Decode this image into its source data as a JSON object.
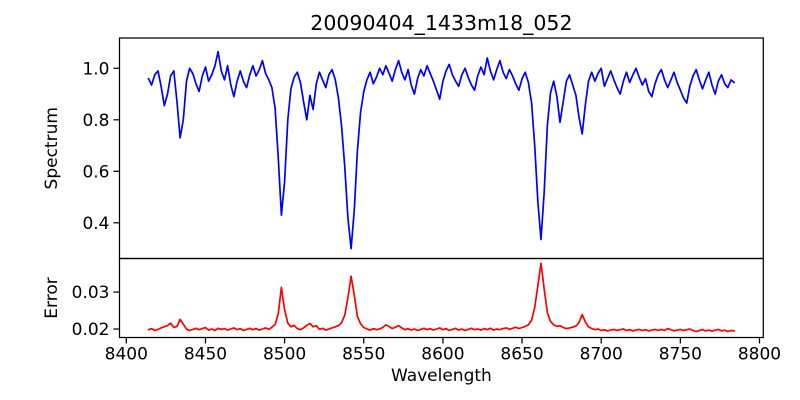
{
  "title": "20090404_1433m18_052",
  "colors": {
    "spectrum_line": "#0000ff",
    "error_line": "#ff0000",
    "spine": "#000000",
    "background": "#ffffff",
    "text": "#000000"
  },
  "axes": {
    "x": {
      "label": "Wavelength",
      "lim": [
        8395.7,
        8802.4
      ],
      "ticks": [
        8400,
        8450,
        8500,
        8550,
        8600,
        8650,
        8700,
        8750,
        8800
      ],
      "tick_labels": [
        "8400",
        "8450",
        "8500",
        "8550",
        "8600",
        "8650",
        "8700",
        "8750",
        "8800"
      ]
    }
  },
  "chart_data": [
    {
      "type": "line",
      "title": "20090404_1433m18_052",
      "xlabel": "Wavelength",
      "ylabel": "Spectrum",
      "color": "#0000ff",
      "grid": false,
      "legend": null,
      "xlim": [
        8395.7,
        8802.4
      ],
      "ylim": [
        0.2614,
        1.1177
      ],
      "yticks": [
        0.4,
        0.6,
        0.8,
        1.0
      ],
      "ytick_labels": [
        "0.4",
        "0.6",
        "0.8",
        "1.0"
      ],
      "absorption_line_centers": [
        8424,
        8434,
        8468,
        8498,
        8514,
        8542,
        8582,
        8598,
        8648,
        8662,
        8675,
        8688,
        8712,
        8732,
        8754,
        8772
      ],
      "x0": 8414,
      "dx": 2,
      "y": [
        0.96,
        0.935,
        0.975,
        0.99,
        0.93,
        0.855,
        0.9,
        0.97,
        0.99,
        0.87,
        0.73,
        0.8,
        0.95,
        1.0,
        0.98,
        0.94,
        0.91,
        0.97,
        1.005,
        0.95,
        0.975,
        1.01,
        1.065,
        0.99,
        0.955,
        1.01,
        0.935,
        0.89,
        0.95,
        0.99,
        0.95,
        0.925,
        0.975,
        1.01,
        0.97,
        0.995,
        1.03,
        0.98,
        0.955,
        0.925,
        0.845,
        0.65,
        0.43,
        0.56,
        0.8,
        0.92,
        0.965,
        0.985,
        0.945,
        0.87,
        0.8,
        0.895,
        0.84,
        0.94,
        0.985,
        0.955,
        0.925,
        0.975,
        0.995,
        0.955,
        0.885,
        0.775,
        0.615,
        0.42,
        0.3,
        0.45,
        0.68,
        0.83,
        0.91,
        0.955,
        0.985,
        0.94,
        0.965,
        1.0,
        0.975,
        1.01,
        0.98,
        0.95,
        0.995,
        1.03,
        0.985,
        0.955,
        0.995,
        0.935,
        0.9,
        0.96,
        0.995,
        0.97,
        1.01,
        0.98,
        0.95,
        0.915,
        0.88,
        0.95,
        0.99,
        1.015,
        0.975,
        0.95,
        0.93,
        0.975,
        1.0,
        0.965,
        0.935,
        0.915,
        0.97,
        1.005,
        0.975,
        1.04,
        0.99,
        0.955,
        0.995,
        1.03,
        0.985,
        0.96,
        0.995,
        0.97,
        0.94,
        0.915,
        0.96,
        0.985,
        0.945,
        0.865,
        0.7,
        0.48,
        0.335,
        0.52,
        0.78,
        0.905,
        0.95,
        0.89,
        0.79,
        0.87,
        0.95,
        0.975,
        0.935,
        0.895,
        0.81,
        0.745,
        0.86,
        0.95,
        0.985,
        0.95,
        0.98,
        1.0,
        0.93,
        0.96,
        0.99,
        0.955,
        0.925,
        0.9,
        0.95,
        0.985,
        0.945,
        0.975,
        1.0,
        0.965,
        0.935,
        0.96,
        0.91,
        0.89,
        0.94,
        0.975,
        0.995,
        0.955,
        0.925,
        0.955,
        0.985,
        0.945,
        0.915,
        0.885,
        0.865,
        0.93,
        0.97,
        0.995,
        0.955,
        0.92,
        0.955,
        0.985,
        0.935,
        0.9,
        0.95,
        0.975,
        0.94,
        0.925,
        0.955,
        0.945
      ]
    },
    {
      "type": "line",
      "xlabel": "Wavelength",
      "ylabel": "Error",
      "color": "#ff0000",
      "grid": false,
      "legend": null,
      "xlim": [
        8395.7,
        8802.4
      ],
      "ylim": [
        0.0177,
        0.0391
      ],
      "yticks": [
        0.02,
        0.03
      ],
      "ytick_labels": [
        "0.02",
        "0.03"
      ],
      "spike_centers": [
        8498,
        8542,
        8662,
        8688
      ],
      "x0": 8414,
      "dx": 2,
      "y": [
        0.0198,
        0.0201,
        0.0196,
        0.0199,
        0.0203,
        0.0206,
        0.0209,
        0.0216,
        0.0204,
        0.0207,
        0.0226,
        0.0213,
        0.02,
        0.0196,
        0.0199,
        0.0202,
        0.0198,
        0.0201,
        0.0204,
        0.0197,
        0.02,
        0.0196,
        0.0202,
        0.0199,
        0.0201,
        0.0197,
        0.02,
        0.0203,
        0.0198,
        0.0201,
        0.0196,
        0.0199,
        0.0202,
        0.0198,
        0.0201,
        0.0197,
        0.02,
        0.0203,
        0.0199,
        0.0205,
        0.0212,
        0.0242,
        0.0313,
        0.0252,
        0.0216,
        0.0206,
        0.021,
        0.0201,
        0.0198,
        0.0203,
        0.021,
        0.0215,
        0.0206,
        0.0209,
        0.0199,
        0.0202,
        0.0197,
        0.02,
        0.0203,
        0.0206,
        0.0209,
        0.0217,
        0.0238,
        0.0284,
        0.0343,
        0.0291,
        0.0234,
        0.0214,
        0.0204,
        0.02,
        0.0197,
        0.0201,
        0.0198,
        0.02,
        0.0204,
        0.0211,
        0.0207,
        0.0201,
        0.0205,
        0.0209,
        0.0203,
        0.0198,
        0.0201,
        0.0197,
        0.02,
        0.0196,
        0.0199,
        0.0202,
        0.0198,
        0.0201,
        0.0197,
        0.02,
        0.0203,
        0.0198,
        0.0201,
        0.0196,
        0.0199,
        0.0202,
        0.0197,
        0.02,
        0.0196,
        0.0199,
        0.0202,
        0.0198,
        0.02,
        0.0197,
        0.0201,
        0.0198,
        0.0202,
        0.0197,
        0.02,
        0.0198,
        0.0201,
        0.0203,
        0.0199,
        0.0202,
        0.0205,
        0.0201,
        0.0204,
        0.0207,
        0.0211,
        0.0224,
        0.0258,
        0.0318,
        0.0378,
        0.0308,
        0.0244,
        0.0221,
        0.0211,
        0.0207,
        0.0209,
        0.0204,
        0.0201,
        0.0203,
        0.0205,
        0.0208,
        0.0217,
        0.0239,
        0.0219,
        0.0206,
        0.0201,
        0.0198,
        0.02,
        0.0196,
        0.0198,
        0.0195,
        0.0197,
        0.0199,
        0.0196,
        0.0198,
        0.02,
        0.0196,
        0.0198,
        0.0195,
        0.0197,
        0.0199,
        0.0196,
        0.0198,
        0.0195,
        0.0197,
        0.0199,
        0.0196,
        0.0199,
        0.0196,
        0.0201,
        0.0198,
        0.0195,
        0.0197,
        0.0199,
        0.0196,
        0.0198,
        0.02,
        0.0196,
        0.0193,
        0.0196,
        0.0198,
        0.0195,
        0.0197,
        0.0194,
        0.0197,
        0.0199,
        0.0195,
        0.0197,
        0.0193,
        0.0196,
        0.0195
      ]
    }
  ]
}
